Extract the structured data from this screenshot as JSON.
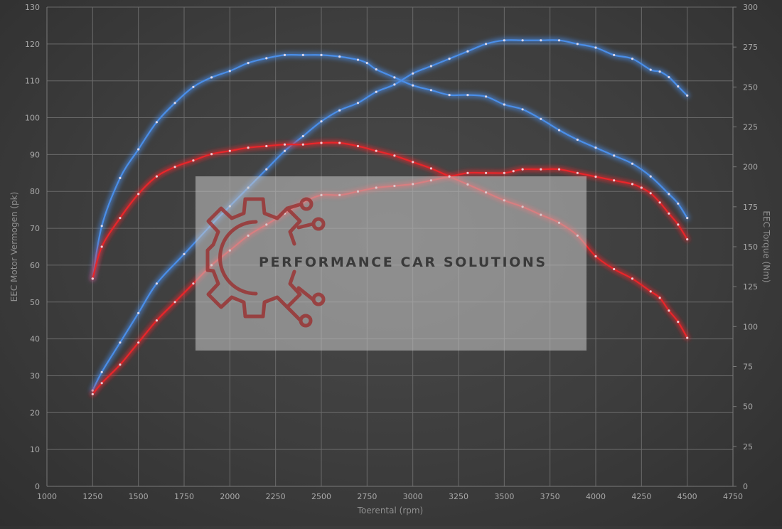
{
  "chart_data": {
    "type": "line",
    "title": "",
    "xlabel": "Toerental (rpm)",
    "ylabel_left": "EEC Motor Vermogen (pk)",
    "ylabel_right": "EEC Torque (Nm)",
    "xlim": [
      1000,
      4750
    ],
    "ylim_left": [
      0,
      130
    ],
    "ylim_right": [
      0,
      300
    ],
    "x_ticks": [
      1000,
      1250,
      1500,
      1750,
      2000,
      2250,
      2500,
      2750,
      3000,
      3250,
      3500,
      3750,
      4000,
      4250,
      4500,
      4750
    ],
    "y_left_ticks": [
      0,
      10,
      20,
      30,
      40,
      50,
      60,
      70,
      80,
      90,
      100,
      110,
      120,
      130
    ],
    "y_right_ticks": [
      0,
      25,
      50,
      75,
      100,
      125,
      150,
      175,
      200,
      225,
      250,
      275,
      300
    ],
    "grid": true,
    "colors": {
      "tuned": "#4a8ee8",
      "stock": "#e8262a",
      "grid": "#6a6a6a"
    },
    "series": [
      {
        "axis": "left",
        "kind": "power",
        "variant": "tuned",
        "x": [
          1250,
          1300,
          1400,
          1500,
          1600,
          1750,
          1900,
          2000,
          2100,
          2200,
          2300,
          2400,
          2500,
          2600,
          2700,
          2800,
          2900,
          3000,
          3100,
          3200,
          3300,
          3400,
          3500,
          3600,
          3700,
          3800,
          3900,
          4000,
          4100,
          4200,
          4300,
          4350,
          4400,
          4450,
          4500
        ],
        "y": [
          26,
          31,
          39,
          47,
          55,
          63,
          71,
          76,
          81,
          86,
          91,
          95,
          99,
          102,
          104,
          107,
          109,
          112,
          114,
          116,
          118,
          120,
          121,
          121,
          121,
          121,
          120,
          119,
          117,
          116,
          113,
          112.5,
          111,
          108.5,
          106
        ]
      },
      {
        "axis": "right",
        "kind": "torque",
        "variant": "tuned",
        "x": [
          1250,
          1300,
          1400,
          1500,
          1600,
          1700,
          1800,
          1900,
          2000,
          2100,
          2200,
          2300,
          2400,
          2500,
          2600,
          2700,
          2750,
          2800,
          2900,
          3000,
          3100,
          3200,
          3300,
          3400,
          3500,
          3600,
          3700,
          3800,
          3900,
          4000,
          4100,
          4200,
          4300,
          4400,
          4450,
          4500
        ],
        "y": [
          130,
          163,
          193,
          211,
          228,
          240,
          250,
          256,
          260,
          265,
          268,
          270,
          270,
          270,
          269,
          267,
          265,
          261,
          256,
          251,
          248,
          245,
          245,
          244,
          239,
          236,
          230,
          223,
          217,
          212,
          207,
          202,
          194,
          183,
          177,
          168
        ]
      },
      {
        "axis": "left",
        "kind": "power",
        "variant": "stock",
        "x": [
          1250,
          1300,
          1400,
          1500,
          1600,
          1700,
          1800,
          1900,
          2000,
          2100,
          2200,
          2300,
          2400,
          2500,
          2600,
          2700,
          2800,
          2900,
          3000,
          3100,
          3200,
          3300,
          3400,
          3500,
          3550,
          3600,
          3700,
          3800,
          3900,
          4000,
          4100,
          4200,
          4250,
          4300,
          4350,
          4400,
          4450,
          4500
        ],
        "y": [
          25,
          28,
          33,
          39,
          45,
          50,
          55,
          60,
          64,
          68,
          71,
          74,
          77,
          79,
          79,
          80,
          81,
          81.5,
          82,
          83,
          84,
          85,
          85,
          85,
          85.5,
          86,
          86,
          86,
          85,
          84,
          83,
          82,
          81,
          79.5,
          77,
          74,
          71,
          67
        ]
      },
      {
        "axis": "right",
        "kind": "torque",
        "variant": "stock",
        "x": [
          1250,
          1300,
          1400,
          1500,
          1600,
          1700,
          1800,
          1900,
          2000,
          2100,
          2200,
          2300,
          2400,
          2500,
          2600,
          2700,
          2800,
          2900,
          3000,
          3100,
          3200,
          3300,
          3400,
          3500,
          3600,
          3700,
          3800,
          3900,
          4000,
          4100,
          4200,
          4300,
          4350,
          4400,
          4450,
          4500
        ],
        "y": [
          130,
          150,
          168,
          183,
          194,
          200,
          204,
          208,
          210,
          212,
          213,
          214,
          214,
          215,
          215,
          213,
          210,
          207,
          203,
          199,
          194,
          189,
          184,
          179,
          175,
          170,
          165,
          157,
          144,
          136,
          130,
          122,
          118,
          110,
          103,
          93
        ]
      }
    ]
  },
  "watermark": {
    "text": "PERFORMANCE CAR SOLUTIONS",
    "logo_icon": "gear-circuit-logo-icon",
    "logo_color": "#9a3535"
  }
}
